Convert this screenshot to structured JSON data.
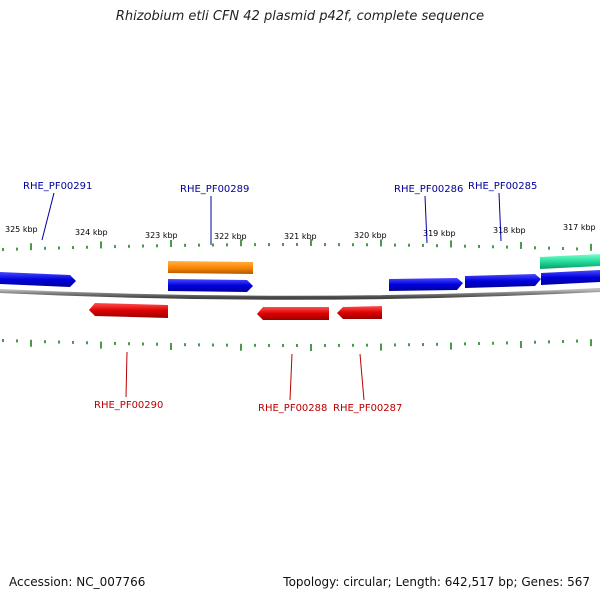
{
  "title": "Rhizobium etli CFN 42 plasmid p42f, complete sequence",
  "footer": {
    "accession": "Accession: NC_007766",
    "topology": "Topology: circular; Length: 642,517 bp; Genes: 567"
  },
  "colors": {
    "forward_strand": "#0000dd",
    "reverse_strand": "#dd0000",
    "orange_feature": "#ff8800",
    "green_feature": "#22dd99",
    "backbone": "#777777",
    "tick": "#117711",
    "forward_label": "#000099",
    "reverse_label": "#bb0000"
  },
  "kbp_ticks": [
    "325 kbp",
    "324 kbp",
    "323 kbp",
    "322 kbp",
    "321 kbp",
    "320 kbp",
    "319 kbp",
    "318 kbp",
    "317 kbp"
  ],
  "gene_labels_top": [
    "RHE_PF00291",
    "RHE_PF00289",
    "RHE_PF00286",
    "RHE_PF00285"
  ],
  "gene_labels_bottom": [
    "RHE_PF00290",
    "RHE_PF00288",
    "RHE_PF00287"
  ]
}
